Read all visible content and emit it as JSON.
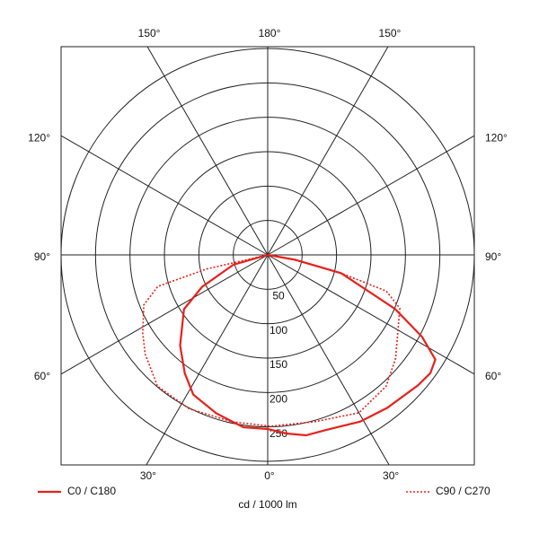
{
  "chart_data": {
    "type": "polar",
    "axis_label": "cd / 1000 lm",
    "rlim": [
      0,
      300
    ],
    "rticks": [
      50,
      100,
      150,
      200,
      250
    ],
    "angle_ticks": [
      {
        "value": 0,
        "label": "0°"
      },
      {
        "value": 30,
        "label": "30°"
      },
      {
        "value": 60,
        "label": "60°"
      },
      {
        "value": 90,
        "label": "90°"
      },
      {
        "value": 120,
        "label": "120°"
      },
      {
        "value": 150,
        "label": "150°"
      },
      {
        "value": 180,
        "label": "180°"
      }
    ],
    "series": [
      {
        "name": "C0 / C180",
        "color": "#e8201a",
        "dash": "solid",
        "angles": [
          -90,
          -74,
          -64,
          -57,
          -44,
          -35,
          -28,
          -18,
          -8,
          0,
          6,
          12,
          18,
          29,
          38,
          49,
          54,
          58,
          62,
          67,
          76,
          80,
          90
        ],
        "values": [
          0,
          52,
          106,
          145,
          183,
          210,
          230,
          242,
          253,
          253,
          261,
          268,
          268,
          277,
          282,
          289,
          292,
          287,
          254,
          201,
          110,
          40,
          0
        ]
      },
      {
        "name": "C90 / C270",
        "color": "#e8201a",
        "dash": "dotted",
        "angles": [
          -90,
          -77,
          -74,
          -68,
          -58,
          -51,
          -40,
          -27,
          -12,
          1,
          16,
          30,
          42,
          51,
          68,
          73,
          76,
          79,
          90
        ],
        "values": [
          0,
          91,
          166,
          194,
          214,
          229,
          249,
          251,
          248,
          249,
          252,
          265,
          257,
          239,
          207,
          180,
          110,
          42,
          0
        ]
      }
    ]
  }
}
